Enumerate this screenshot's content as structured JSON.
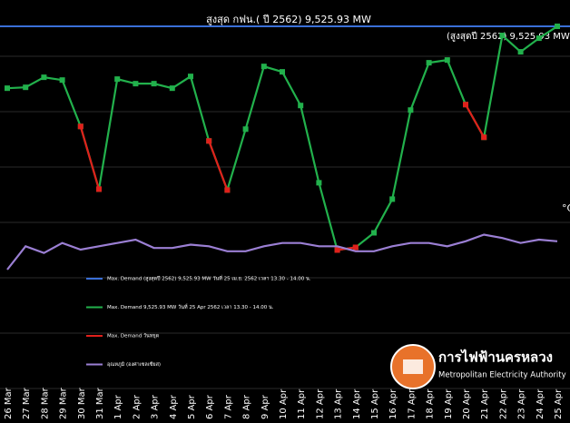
{
  "chart_data": {
    "type": "line",
    "title": "สูงสุด กฟน.( ปี 2562) 9,525.93 MW",
    "annotation": "(สูงสุดปี 2562) 9,525.93 MW",
    "y2label": "°C",
    "categories": [
      "26 Mar",
      "27 Mar",
      "28 Mar",
      "29 Mar",
      "30 Mar",
      "31 Mar",
      "1 Apr",
      "2 Apr",
      "3 Apr",
      "4 Apr",
      "5 Apr",
      "6 Apr",
      "7 Apr",
      "8 Apr",
      "9 Apr",
      "10 Apr",
      "11 Apr",
      "12 Apr",
      "13 Apr",
      "14 Apr",
      "15 Apr",
      "16 Apr",
      "17 Apr",
      "18 Apr",
      "19 Apr",
      "20 Apr",
      "21 Apr",
      "22 Apr",
      "23 Apr",
      "24 Apr",
      "25 Apr"
    ],
    "ylim": [
      2800,
      10000
    ],
    "y2lim": [
      20,
      44
    ],
    "reference_line": {
      "name": "Max. Demand (สูงสุดปี 2562) 9,525.93 MW วันที่ 25 เม.ย. 2562 เวลา 13.30 - 14.00 น.",
      "value": 9525.93,
      "color": "#3a6fd8"
    },
    "series": [
      {
        "name": "Max. Demand 9,525.93 MW วันที่ 25 Apr 2562 เวลา 13.30 - 14.00 น.",
        "color": "#22b14c",
        "markers": true,
        "values": [
          8410,
          8426,
          8607,
          8557,
          7721,
          6590,
          8574,
          8492,
          8492,
          8410,
          8623,
          7459,
          6574,
          7672,
          8803,
          8705,
          8098,
          6705,
          5492,
          5541,
          5803,
          6410,
          8016,
          8869,
          8918,
          8115,
          7525,
          9361,
          9066,
          9311,
          9525.93
        ]
      },
      {
        "name": "Max. Demand วันหยุด",
        "color": "#e0201b",
        "markers": true,
        "values": [
          null,
          null,
          null,
          null,
          7721,
          6590,
          null,
          null,
          null,
          null,
          null,
          7459,
          6574,
          null,
          null,
          null,
          null,
          null,
          5492,
          5541,
          null,
          null,
          null,
          null,
          null,
          8115,
          7525,
          null,
          null,
          null,
          null
        ]
      },
      {
        "name": "อุณหภูมิ (องศาเซลเซียส)",
        "color": "#9b7fd4",
        "axis": "y2",
        "markers": false,
        "values": [
          27.8,
          29.2,
          28.8,
          29.4,
          29.0,
          29.2,
          29.4,
          29.6,
          29.1,
          29.1,
          29.3,
          29.2,
          28.9,
          28.9,
          29.2,
          29.4,
          29.4,
          29.2,
          29.2,
          28.9,
          28.9,
          29.2,
          29.4,
          29.4,
          29.2,
          29.5,
          29.9,
          29.7,
          29.4,
          29.6,
          29.5
        ]
      }
    ],
    "logo": {
      "name": "การไฟฟ้านครหลวง",
      "subtitle": "Metropolitan Electricity Authority"
    }
  }
}
